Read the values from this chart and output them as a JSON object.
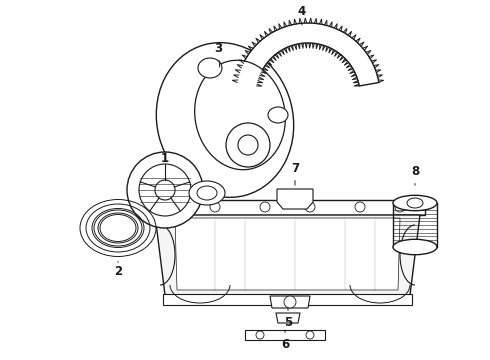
{
  "background_color": "#ffffff",
  "line_color": "#1a1a1a",
  "line_width": 1.0,
  "fig_width": 4.9,
  "fig_height": 3.6,
  "dpi": 100,
  "xlim": [
    0,
    490
  ],
  "ylim": [
    0,
    360
  ]
}
